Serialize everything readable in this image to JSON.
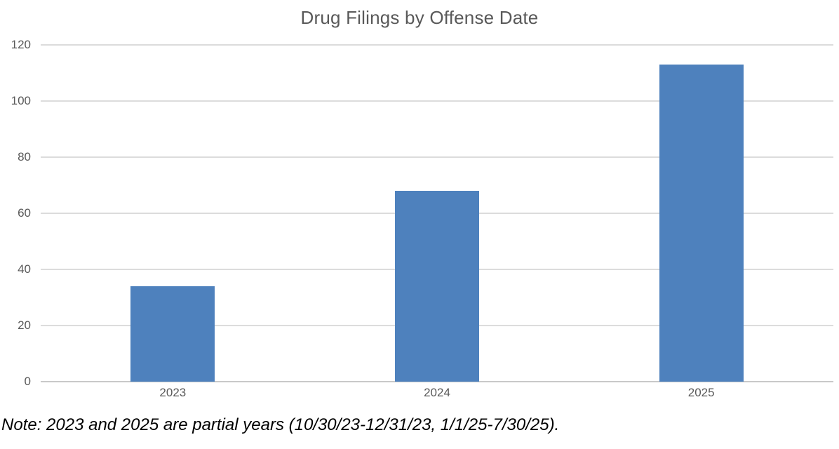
{
  "chart_data": {
    "type": "bar",
    "title": "Drug Filings by Offense Date",
    "categories": [
      "2023",
      "2024",
      "2025"
    ],
    "values": [
      34,
      68,
      113
    ],
    "xlabel": "",
    "ylabel": "",
    "ylim": [
      0,
      120
    ],
    "yticks": [
      0,
      20,
      40,
      60,
      80,
      100,
      120
    ],
    "grid": true,
    "legend": "none",
    "bar_color": "#4e81bd",
    "gridline_color": "#dcdcdc",
    "axis_line_color": "#c9c9c9",
    "title_color": "#595959",
    "tick_label_color": "#595959"
  },
  "note": "Note: 2023 and 2025 are partial years (10/30/23-12/31/23, 1/1/25-7/30/25)."
}
